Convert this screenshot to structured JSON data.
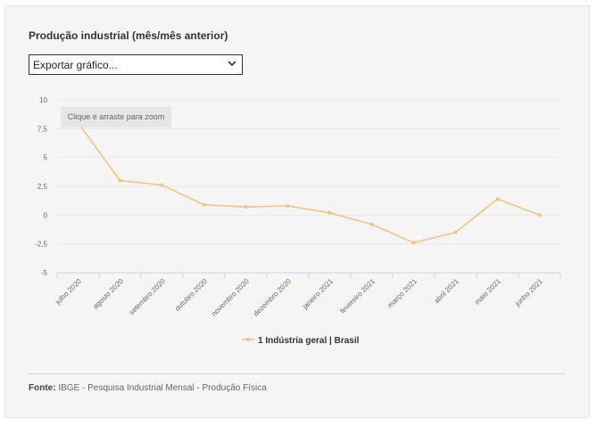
{
  "header": {
    "title": "Produção industrial (mês/mês anterior)",
    "export_label": "Exportar gráfico..."
  },
  "chart_hint": "Clique e arraste para zoom",
  "footer": {
    "source_label": "Fonte:",
    "source_text": "IBGE - Pesquisa Industrial Mensal - Produção Física"
  },
  "colors": {
    "series": "#f5c07a",
    "grid": "#e9e9e9",
    "axis": "#c8d4ee"
  },
  "chart_data": {
    "type": "line",
    "title": "Produção industrial (mês/mês anterior)",
    "categories": [
      "julho 2020",
      "agosto 2020",
      "setembro 2020",
      "outubro 2020",
      "novembro 2020",
      "dezembro 2020",
      "janeiro 2021",
      "fevereiro 2021",
      "março 2021",
      "abril 2021",
      "maio 2021",
      "junho 2021"
    ],
    "series": [
      {
        "name": "1 Indústria geral | Brasil",
        "values": [
          8.0,
          3.0,
          2.6,
          0.9,
          0.7,
          0.8,
          0.2,
          -0.8,
          -2.4,
          -1.5,
          1.4,
          0.0
        ]
      }
    ],
    "yticks": [
      10,
      7.5,
      5,
      2.5,
      0,
      -2.5,
      -5
    ],
    "ytick_labels": [
      "10",
      "7,5",
      "5",
      "2,5",
      "0",
      "-2,5",
      "-5"
    ],
    "ylim": [
      -5,
      10
    ],
    "legend": "bottom-center"
  }
}
